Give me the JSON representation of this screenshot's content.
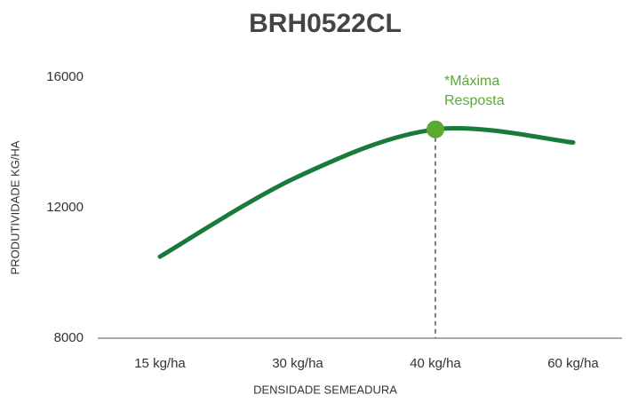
{
  "chart_data": {
    "type": "line",
    "title": "BRH0522CL",
    "x_label": "DENSIDADE SEMEADURA",
    "y_label": "PRODUTIVIDADE KG/HA",
    "categories": [
      "15 kg/ha",
      "30 kg/ha",
      "40 kg/ha",
      "60 kg/ha"
    ],
    "series": [
      {
        "name": "BRH0522CL",
        "color": "#1a7a3a",
        "values": [
          10500,
          12950,
          14400,
          14000
        ]
      }
    ],
    "ylim": [
      8000,
      16000
    ],
    "yticks": [
      8000,
      12000,
      16000
    ],
    "annotation": {
      "lines": [
        "*Máxima",
        "Resposta"
      ],
      "color": "#5aaa32"
    }
  }
}
